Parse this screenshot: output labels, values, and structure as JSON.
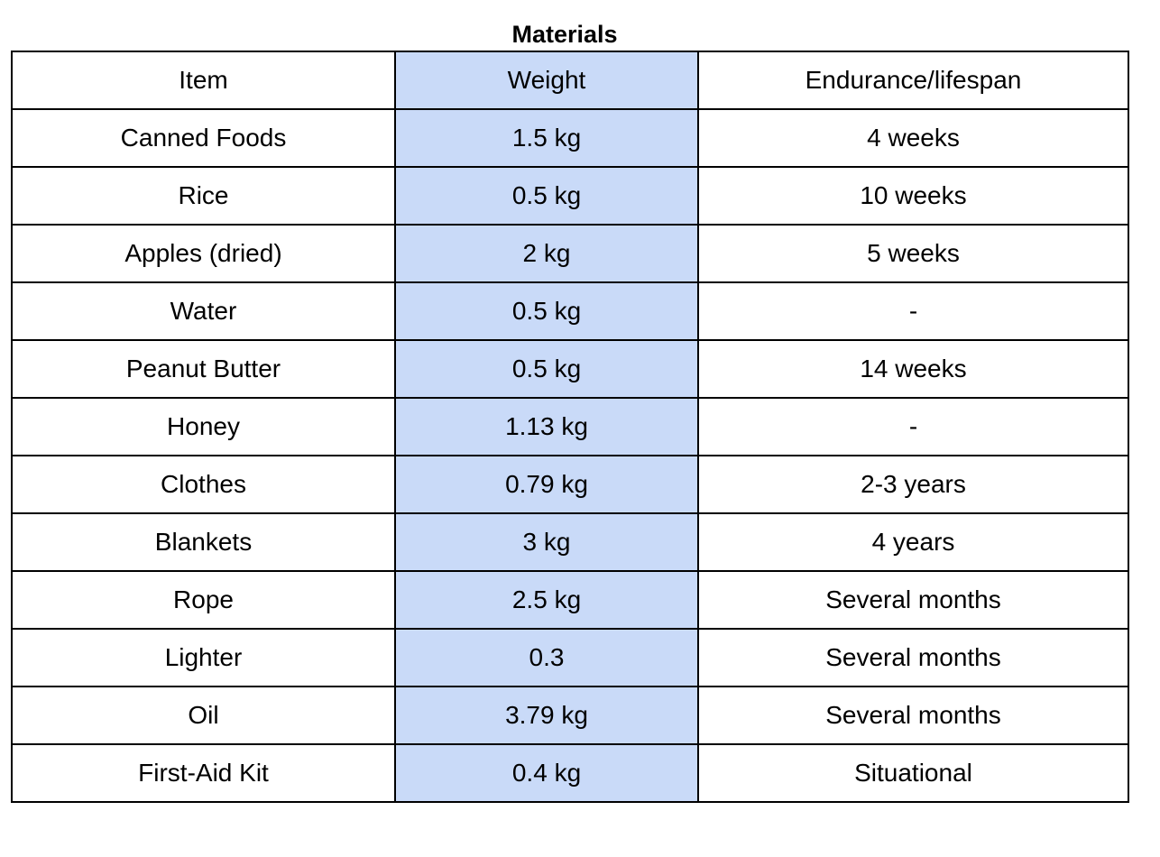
{
  "title": "Materials",
  "colors": {
    "highlight_column": "#c9daf8",
    "border": "#000000",
    "background": "#ffffff"
  },
  "table": {
    "headers": [
      "Item",
      "Weight",
      "Endurance/lifespan"
    ],
    "rows": [
      [
        "Canned Foods",
        "1.5 kg",
        "4 weeks"
      ],
      [
        "Rice",
        "0.5 kg",
        "10 weeks"
      ],
      [
        "Apples (dried)",
        "2 kg",
        "5 weeks"
      ],
      [
        "Water",
        "0.5 kg",
        "-"
      ],
      [
        "Peanut Butter",
        "0.5 kg",
        "14 weeks"
      ],
      [
        "Honey",
        "1.13 kg",
        "-"
      ],
      [
        "Clothes",
        "0.79 kg",
        "2-3 years"
      ],
      [
        "Blankets",
        "3 kg",
        "4 years"
      ],
      [
        "Rope",
        "2.5 kg",
        "Several months"
      ],
      [
        "Lighter",
        "0.3",
        "Several months"
      ],
      [
        "Oil",
        "3.79 kg",
        "Several months"
      ],
      [
        "First-Aid Kit",
        "0.4 kg",
        "Situational"
      ]
    ]
  }
}
